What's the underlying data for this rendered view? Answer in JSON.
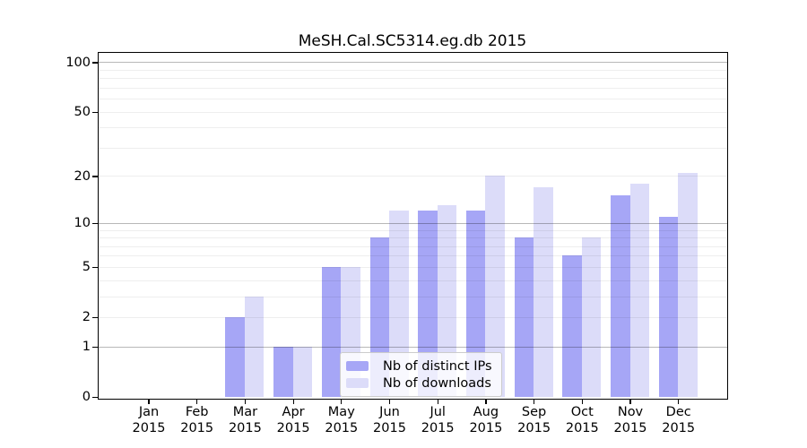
{
  "figure": {
    "title": "MeSH.Cal.SC5314.eg.db 2015"
  },
  "legend": {
    "entries": [
      {
        "label": "Nb of distinct IPs",
        "color": "#a6a6f6"
      },
      {
        "label": "Nb of downloads",
        "color": "#dcdcf9"
      }
    ]
  },
  "chart_data": {
    "type": "bar",
    "title": "MeSH.Cal.SC5314.eg.db 2015",
    "categories": [
      "Jan",
      "Feb",
      "Mar",
      "Apr",
      "May",
      "Jun",
      "Jul",
      "Aug",
      "Sep",
      "Oct",
      "Nov",
      "Dec"
    ],
    "category_year": "2015",
    "series": [
      {
        "name": "Nb of distinct IPs",
        "color": "#a6a6f6",
        "values": [
          0,
          0,
          2,
          1,
          5,
          8,
          12,
          12,
          8,
          6,
          15,
          11
        ]
      },
      {
        "name": "Nb of downloads",
        "color": "#dcdcf9",
        "values": [
          0,
          0,
          3,
          1,
          5,
          12,
          13,
          20,
          17,
          8,
          18,
          21
        ]
      }
    ],
    "xlabel": "",
    "ylabel": "",
    "yscale": "log1p",
    "ylim": [
      0,
      114
    ],
    "yticks": [
      0,
      1,
      2,
      5,
      10,
      20,
      50,
      100
    ],
    "ytick_labels": [
      "0",
      "1",
      "2",
      "5",
      "10",
      "20",
      "50",
      "100"
    ],
    "grid": {
      "on": true,
      "major_lines": [
        1,
        10,
        100
      ],
      "minor_lines": [
        2,
        3,
        4,
        5,
        6,
        7,
        8,
        9,
        20,
        30,
        40,
        50,
        60,
        70,
        80,
        90
      ]
    },
    "legend_position": "lower center-left",
    "bar_grouping": "paired side-by-side per month"
  }
}
